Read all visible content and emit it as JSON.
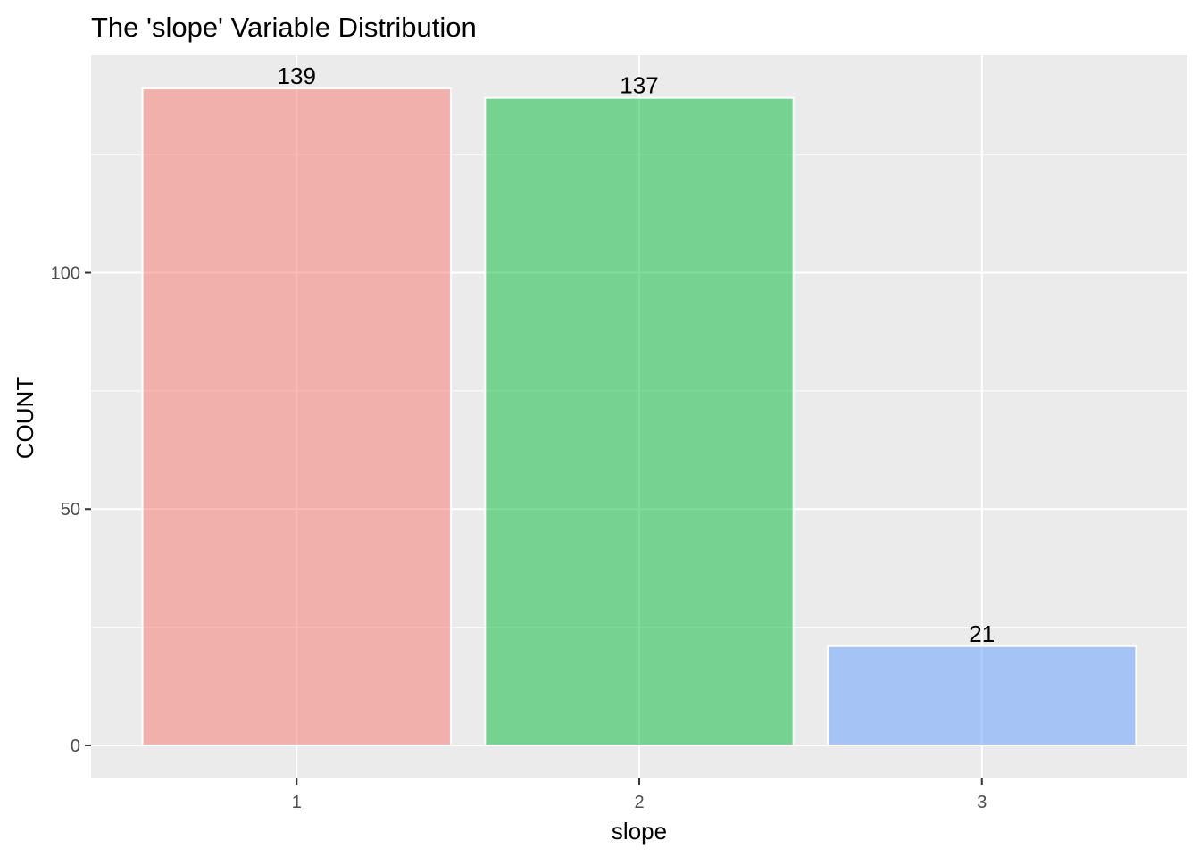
{
  "chart_data": {
    "type": "bar",
    "title": "The 'slope' Variable Distribution",
    "xlabel": "slope",
    "ylabel": "COUNT",
    "categories": [
      "1",
      "2",
      "3"
    ],
    "values": [
      139,
      137,
      21
    ],
    "data_labels": [
      "139",
      "137",
      "21"
    ],
    "ylim": [
      -7,
      146
    ],
    "yticks": [
      0,
      50,
      100
    ],
    "ytick_labels": [
      "0",
      "50",
      "100"
    ],
    "ygrid_minor": [
      25,
      75,
      125
    ],
    "grid": true,
    "legend": "none",
    "colors": [
      "#F8766D",
      "#00BA38",
      "#619CFF"
    ],
    "bar_opacity": 0.5,
    "panel_background": "#EBEBEB",
    "gridline_color": "#FFFFFF"
  }
}
